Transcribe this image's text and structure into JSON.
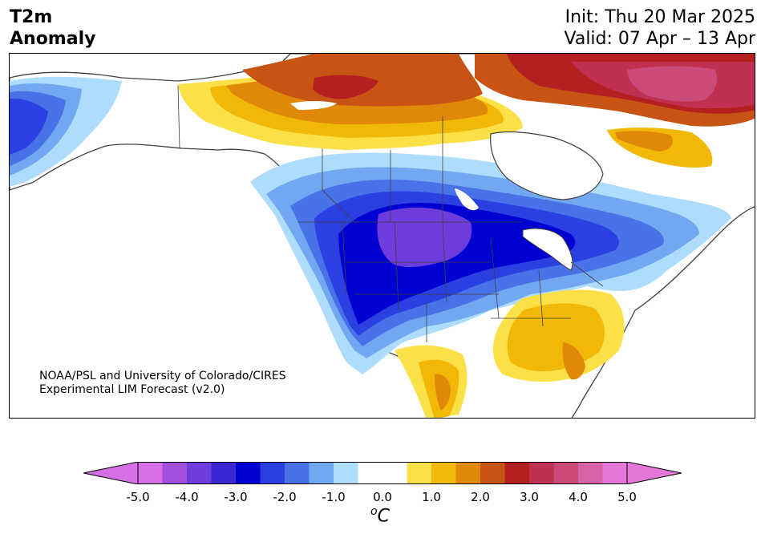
{
  "title": {
    "left_line1": "T2m",
    "left_line2": "Anomaly",
    "init": "Init: Thu 20 Mar 2025",
    "valid": "Valid: 07 Apr – 13 Apr"
  },
  "credit": {
    "line1": "NOAA/PSL and University of Colorado/CIRES",
    "line2": "Experimental LIM Forecast (v2.0)"
  },
  "colorbar": {
    "unit_base": "C",
    "unit_sup": "o",
    "ticks": [
      "-5.0",
      "-4.0",
      "-3.0",
      "-2.0",
      "-1.0",
      "0.0",
      "1.0",
      "2.0",
      "3.0",
      "4.0",
      "5.0"
    ],
    "colors": [
      "#d66ee6",
      "#a050dc",
      "#6e3cdc",
      "#3c28d2",
      "#0000d2",
      "#2a40e0",
      "#4a72e8",
      "#72a8f2",
      "#aedcfc",
      "#ffffff",
      "#ffffff",
      "#fce048",
      "#f2b808",
      "#e08808",
      "#c85414",
      "#b42020",
      "#c03050",
      "#cc4a78",
      "#d862a8",
      "#e478d8"
    ],
    "under_color": "#d66ee6",
    "over_color": "#e478d8"
  },
  "map": {
    "colors": {
      "ocean": "#ffffff",
      "coast": "#404040",
      "cold1": "#aedcfc",
      "cold2": "#72a8f2",
      "cold3": "#4a72e8",
      "cold4": "#2a40e0",
      "cold5": "#0000d2",
      "cold6": "#6e3cdc",
      "warm1": "#fce048",
      "warm2": "#f2b808",
      "warm3": "#e08808",
      "warm4": "#c85414",
      "warm5": "#b42020",
      "warm6": "#c03050",
      "warm7": "#cc4a78"
    }
  }
}
